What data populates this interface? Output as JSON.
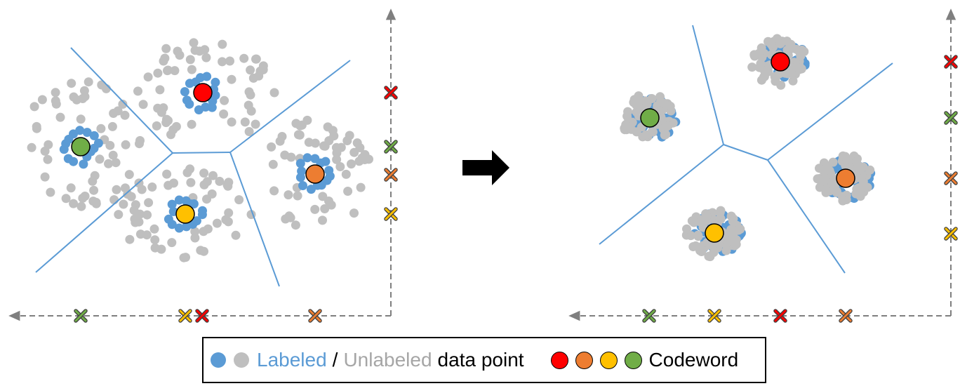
{
  "colors": {
    "labeled": "#5b9bd5",
    "unlabeled": "#bfbfbf",
    "boundary": "#5b9bd5",
    "axis": "#7f7f7f",
    "red": "#ff0000",
    "orange": "#ed7d31",
    "yellow": "#ffc000",
    "green": "#70ad47"
  },
  "legend": {
    "labeled_text": "Labeled",
    "separator": "/",
    "unlabeled_text": "Unlabeled",
    "data_point_text": "data point",
    "codeword_text": "Codeword"
  },
  "icons": [
    "right-arrow-icon",
    "cross-marker-icon"
  ],
  "panels": [
    {
      "name": "before",
      "clusters": [
        {
          "color": "red",
          "spread": "wide"
        },
        {
          "color": "green",
          "spread": "wide"
        },
        {
          "color": "orange",
          "spread": "wide"
        },
        {
          "color": "yellow",
          "spread": "wide"
        }
      ],
      "x_axis_marker_order": [
        "green",
        "yellow",
        "red",
        "orange"
      ],
      "y_axis_marker_order": [
        "red",
        "green",
        "orange",
        "yellow"
      ]
    },
    {
      "name": "after",
      "clusters": [
        {
          "color": "red",
          "spread": "compact"
        },
        {
          "color": "green",
          "spread": "compact"
        },
        {
          "color": "orange",
          "spread": "compact"
        },
        {
          "color": "yellow",
          "spread": "compact"
        }
      ],
      "x_axis_marker_order": [
        "green",
        "yellow",
        "red",
        "orange"
      ],
      "y_axis_marker_order": [
        "red",
        "green",
        "orange",
        "yellow"
      ]
    }
  ]
}
